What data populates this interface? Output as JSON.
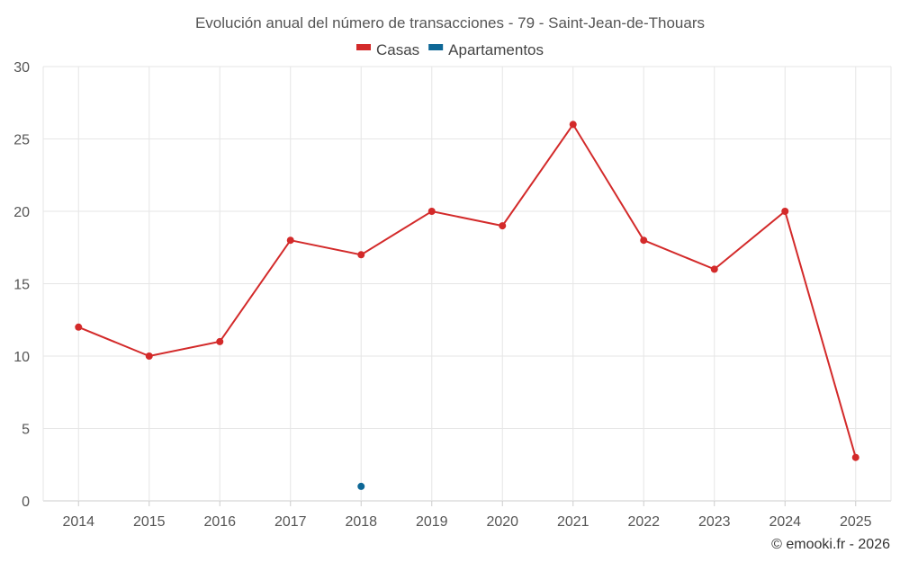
{
  "chart_data": {
    "type": "line",
    "title": "Evolución anual del número de transacciones - 79 - Saint-Jean-de-Thouars",
    "categories": [
      "2014",
      "2015",
      "2016",
      "2017",
      "2018",
      "2019",
      "2020",
      "2021",
      "2022",
      "2023",
      "2024",
      "2025"
    ],
    "series": [
      {
        "name": "Casas",
        "color": "#d32a2a",
        "values": [
          12,
          10,
          11,
          18,
          17,
          20,
          19,
          26,
          18,
          16,
          20,
          3
        ]
      },
      {
        "name": "Apartamentos",
        "color": "#0d6796",
        "values": [
          null,
          null,
          null,
          null,
          1,
          null,
          null,
          null,
          null,
          null,
          null,
          null
        ]
      }
    ],
    "ylim": [
      0,
      30
    ],
    "yticks": [
      0,
      5,
      10,
      15,
      20,
      25,
      30
    ],
    "xlabel": "",
    "ylabel": "",
    "grid": true,
    "legend_position": "top-center"
  },
  "credit": "© emooki.fr - 2026"
}
